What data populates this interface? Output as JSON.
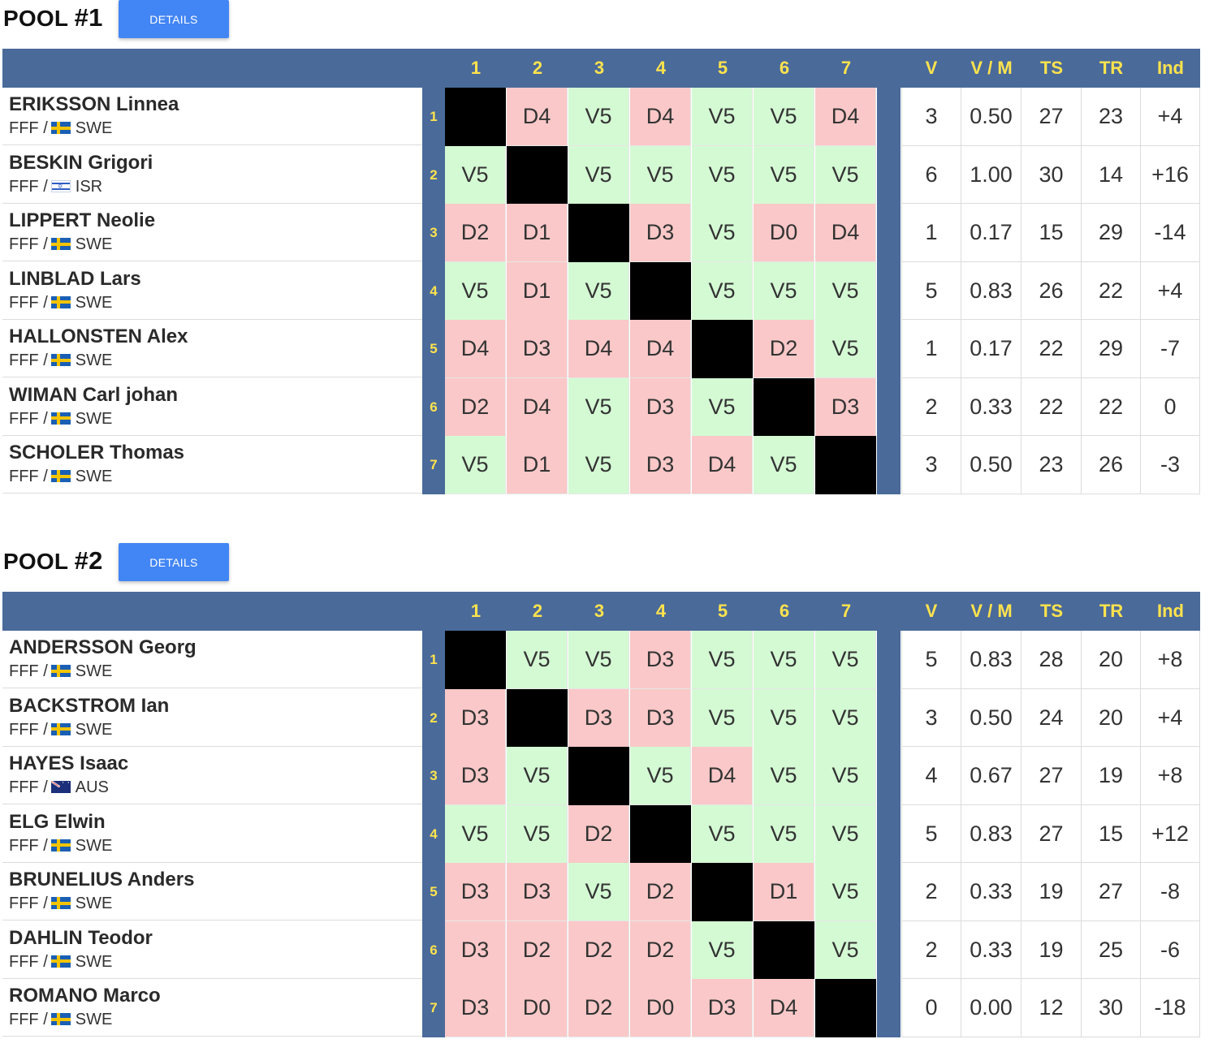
{
  "header": {
    "matrix_cols": [
      "1",
      "2",
      "3",
      "4",
      "5",
      "6",
      "7"
    ],
    "stat_cols": [
      "V",
      "V / M",
      "TS",
      "TR",
      "Ind"
    ]
  },
  "pools": [
    {
      "title_word": "POOL",
      "title_num": "#1",
      "details_label": "DETAILS",
      "fencers": [
        {
          "n": "1",
          "name": "ERIKSSON Linnea",
          "club": "FFF /",
          "flag": "swe",
          "country": "SWE",
          "results": [
            "",
            "D4",
            "V5",
            "D4",
            "V5",
            "V5",
            "D4"
          ],
          "v": "3",
          "vm": "0.50",
          "ts": "27",
          "tr": "23",
          "ind": "+4"
        },
        {
          "n": "2",
          "name": "BESKIN Grigori",
          "club": "FFF /",
          "flag": "isr",
          "country": "ISR",
          "results": [
            "V5",
            "",
            "V5",
            "V5",
            "V5",
            "V5",
            "V5"
          ],
          "v": "6",
          "vm": "1.00",
          "ts": "30",
          "tr": "14",
          "ind": "+16"
        },
        {
          "n": "3",
          "name": "LIPPERT Neolie",
          "club": "FFF /",
          "flag": "swe",
          "country": "SWE",
          "results": [
            "D2",
            "D1",
            "",
            "D3",
            "V5",
            "D0",
            "D4"
          ],
          "v": "1",
          "vm": "0.17",
          "ts": "15",
          "tr": "29",
          "ind": "-14"
        },
        {
          "n": "4",
          "name": "LINBLAD Lars",
          "club": "FFF /",
          "flag": "swe",
          "country": "SWE",
          "results": [
            "V5",
            "D1",
            "V5",
            "",
            "V5",
            "V5",
            "V5"
          ],
          "v": "5",
          "vm": "0.83",
          "ts": "26",
          "tr": "22",
          "ind": "+4"
        },
        {
          "n": "5",
          "name": "HALLONSTEN Alex",
          "club": "FFF /",
          "flag": "swe",
          "country": "SWE",
          "results": [
            "D4",
            "D3",
            "D4",
            "D4",
            "",
            "D2",
            "V5"
          ],
          "v": "1",
          "vm": "0.17",
          "ts": "22",
          "tr": "29",
          "ind": "-7"
        },
        {
          "n": "6",
          "name": "WIMAN Carl johan",
          "club": "FFF /",
          "flag": "swe",
          "country": "SWE",
          "results": [
            "D2",
            "D4",
            "V5",
            "D3",
            "V5",
            "",
            "D3"
          ],
          "v": "2",
          "vm": "0.33",
          "ts": "22",
          "tr": "22",
          "ind": "0"
        },
        {
          "n": "7",
          "name": "SCHOLER Thomas",
          "club": "FFF /",
          "flag": "swe",
          "country": "SWE",
          "results": [
            "V5",
            "D1",
            "V5",
            "D3",
            "D4",
            "V5",
            ""
          ],
          "v": "3",
          "vm": "0.50",
          "ts": "23",
          "tr": "26",
          "ind": "-3"
        }
      ]
    },
    {
      "title_word": "POOL",
      "title_num": "#2",
      "details_label": "DETAILS",
      "fencers": [
        {
          "n": "1",
          "name": "ANDERSSON Georg",
          "club": "FFF /",
          "flag": "swe",
          "country": "SWE",
          "results": [
            "",
            "V5",
            "V5",
            "D3",
            "V5",
            "V5",
            "V5"
          ],
          "v": "5",
          "vm": "0.83",
          "ts": "28",
          "tr": "20",
          "ind": "+8"
        },
        {
          "n": "2",
          "name": "BACKSTROM Ian",
          "club": "FFF /",
          "flag": "swe",
          "country": "SWE",
          "results": [
            "D3",
            "",
            "D3",
            "D3",
            "V5",
            "V5",
            "V5"
          ],
          "v": "3",
          "vm": "0.50",
          "ts": "24",
          "tr": "20",
          "ind": "+4"
        },
        {
          "n": "3",
          "name": "HAYES Isaac",
          "club": "FFF /",
          "flag": "aus",
          "country": "AUS",
          "results": [
            "D3",
            "V5",
            "",
            "V5",
            "D4",
            "V5",
            "V5"
          ],
          "v": "4",
          "vm": "0.67",
          "ts": "27",
          "tr": "19",
          "ind": "+8"
        },
        {
          "n": "4",
          "name": "ELG Elwin",
          "club": "FFF /",
          "flag": "swe",
          "country": "SWE",
          "results": [
            "V5",
            "V5",
            "D2",
            "",
            "V5",
            "V5",
            "V5"
          ],
          "v": "5",
          "vm": "0.83",
          "ts": "27",
          "tr": "15",
          "ind": "+12"
        },
        {
          "n": "5",
          "name": "BRUNELIUS Anders",
          "club": "FFF /",
          "flag": "swe",
          "country": "SWE",
          "results": [
            "D3",
            "D3",
            "V5",
            "D2",
            "",
            "D1",
            "V5"
          ],
          "v": "2",
          "vm": "0.33",
          "ts": "19",
          "tr": "27",
          "ind": "-8"
        },
        {
          "n": "6",
          "name": "DAHLIN Teodor",
          "club": "FFF /",
          "flag": "swe",
          "country": "SWE",
          "results": [
            "D3",
            "D2",
            "D2",
            "D2",
            "V5",
            "",
            "V5"
          ],
          "v": "2",
          "vm": "0.33",
          "ts": "19",
          "tr": "25",
          "ind": "-6"
        },
        {
          "n": "7",
          "name": "ROMANO Marco",
          "club": "FFF /",
          "flag": "swe",
          "country": "SWE",
          "results": [
            "D3",
            "D0",
            "D2",
            "D0",
            "D3",
            "D4",
            ""
          ],
          "v": "0",
          "vm": "0.00",
          "ts": "12",
          "tr": "30",
          "ind": "-18"
        }
      ]
    }
  ]
}
